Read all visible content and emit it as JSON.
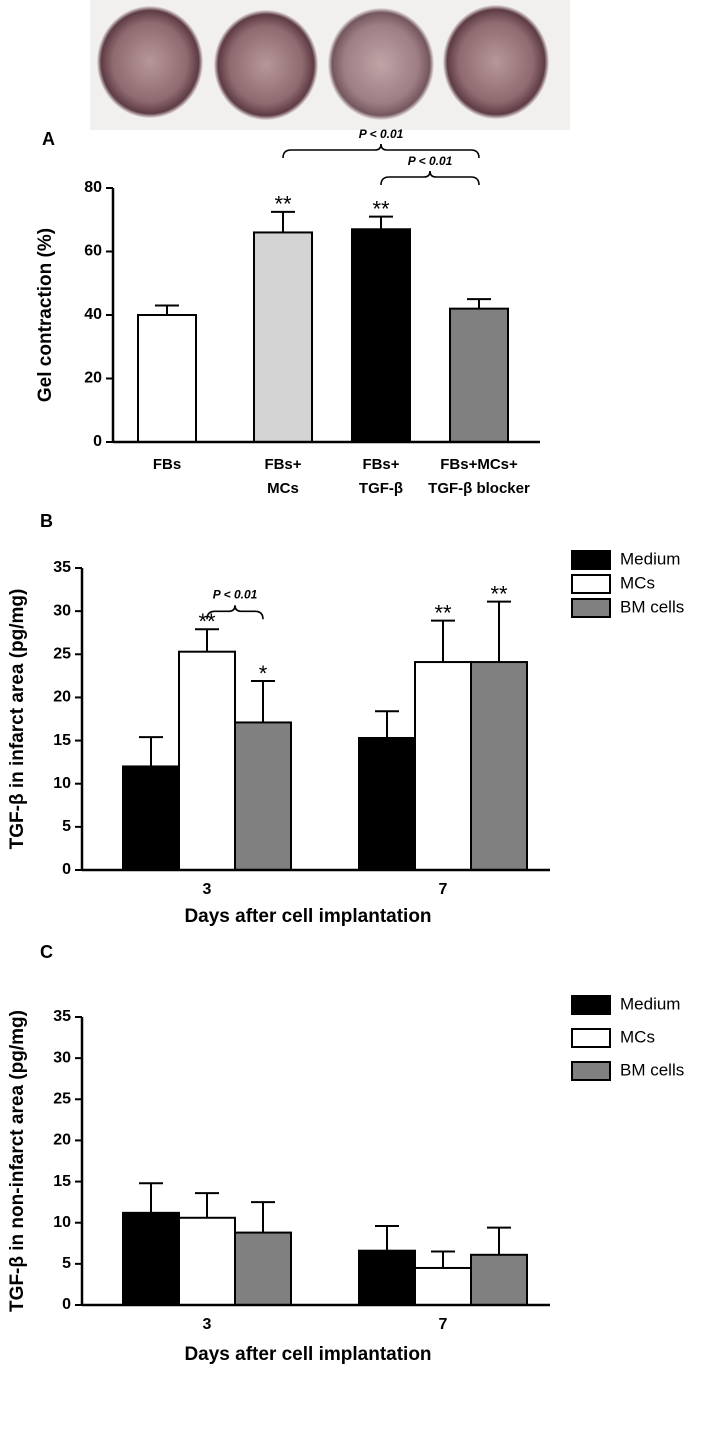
{
  "chart_data": [
    {
      "type": "bar",
      "panel": "A",
      "y_label": "Gel contraction (%)",
      "categories": [
        "FBs",
        "FBs+\nMCs",
        "FBs+\nTGF-β",
        "FBs+MCs+\nTGF-β blocker"
      ],
      "values": [
        40,
        66,
        67,
        42
      ],
      "errors": [
        3,
        6.5,
        4,
        3
      ],
      "colors": [
        "#ffffff",
        "#d4d4d4",
        "#000000",
        "#808080"
      ],
      "significance": [
        null,
        "**",
        "**",
        null
      ],
      "comparisons": [
        {
          "label": "P < 0.01",
          "between": [
            1,
            3
          ]
        },
        {
          "label": "P < 0.01",
          "between": [
            2,
            3
          ]
        }
      ],
      "ylim": [
        0,
        80
      ],
      "yticks": [
        0,
        20,
        40,
        60,
        80
      ]
    },
    {
      "type": "bar",
      "panel": "B",
      "y_label": "TGF-β in infarct area (pg/mg)",
      "x_label": "Days after cell implantation",
      "categories": [
        "3",
        "7"
      ],
      "legend": "upper right",
      "series": [
        {
          "name": "Medium",
          "color": "#000000",
          "values": [
            12,
            15.3
          ],
          "errors": [
            3.4,
            3.1
          ],
          "significance": [
            null,
            null
          ]
        },
        {
          "name": "MCs",
          "color": "#ffffff",
          "values": [
            25.3,
            24.1
          ],
          "errors": [
            2.6,
            4.8
          ],
          "significance": [
            "**",
            "**"
          ]
        },
        {
          "name": "BM cells",
          "color": "#808080",
          "values": [
            17.1,
            24.1
          ],
          "errors": [
            4.8,
            7
          ],
          "significance": [
            "*",
            "**"
          ]
        }
      ],
      "comparisons": [
        {
          "label": "P < 0.01",
          "category": 0,
          "between": [
            1,
            2
          ]
        }
      ],
      "ylim": [
        0,
        35
      ],
      "yticks": [
        0,
        5,
        10,
        15,
        20,
        25,
        30,
        35
      ]
    },
    {
      "type": "bar",
      "panel": "C",
      "y_label": "TGF-β in non-infarct area (pg/mg)",
      "x_label": "Days after cell implantation",
      "categories": [
        "3",
        "7"
      ],
      "legend": "upper right",
      "series": [
        {
          "name": "Medium",
          "color": "#000000",
          "values": [
            11.2,
            6.6
          ],
          "errors": [
            3.6,
            3.0
          ]
        },
        {
          "name": "MCs",
          "color": "#ffffff",
          "values": [
            10.6,
            4.5
          ],
          "errors": [
            3.0,
            2.0
          ]
        },
        {
          "name": "BM cells",
          "color": "#808080",
          "values": [
            8.8,
            6.1
          ],
          "errors": [
            3.7,
            3.3
          ]
        }
      ],
      "ylim": [
        0,
        35
      ],
      "yticks": [
        0,
        5,
        10,
        15,
        20,
        25,
        30,
        35
      ]
    }
  ]
}
